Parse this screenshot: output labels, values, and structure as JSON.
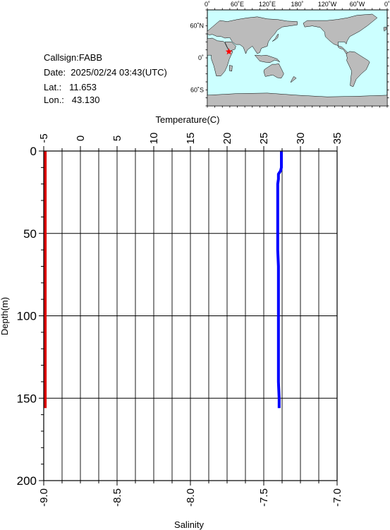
{
  "header": {
    "callsign": "Callsign:FABB",
    "date": "Date:  2025/02/24 03:43(UTC)",
    "lat": "Lat.:   11.653",
    "lon": "Lon.:   43.130"
  },
  "map": {
    "lon_labels": [
      "0˚",
      "60˚E",
      "120˚E",
      "180˚",
      "120˚W",
      "60˚W",
      "0˚"
    ],
    "lat_labels": [
      "60˚N",
      "0˚",
      "60˚S"
    ],
    "station": {
      "lat": 11.653,
      "lon": 43.13
    },
    "ocean_color": "#ccffff",
    "land_color": "#bbbbbb",
    "marker_color": "#ff0000"
  },
  "chart_data": {
    "type": "line",
    "title": "",
    "ylabel": "Depth(m)",
    "ylim": [
      0,
      200
    ],
    "yticks": [
      0,
      50,
      100,
      150,
      200
    ],
    "y_inverted": true,
    "top_axis": {
      "label": "Temperature(C)",
      "range": [
        -5,
        35
      ],
      "ticks": [
        -5,
        0,
        5,
        10,
        15,
        20,
        25,
        30,
        35
      ]
    },
    "bottom_axis": {
      "label": "Salinity",
      "range": [
        -9.0,
        -7.0
      ],
      "ticks": [
        "-9.0",
        "-8.5",
        "-8.0",
        "-7.5",
        "-7.0"
      ],
      "tick_values": [
        -9.0,
        -8.5,
        -8.0,
        -7.5,
        -7.0
      ]
    },
    "grid": true,
    "series": [
      {
        "axis": "temperature",
        "color": "#0000ff",
        "points": [
          [
            27.4,
            0
          ],
          [
            27.4,
            5
          ],
          [
            27.4,
            10
          ],
          [
            27.3,
            12
          ],
          [
            27.0,
            14
          ],
          [
            27.0,
            17
          ],
          [
            26.9,
            20
          ],
          [
            26.9,
            24
          ],
          [
            26.9,
            27
          ],
          [
            26.9,
            30
          ],
          [
            26.9,
            40
          ],
          [
            26.9,
            50
          ],
          [
            26.9,
            60
          ],
          [
            27.0,
            70
          ],
          [
            27.0,
            80
          ],
          [
            27.0,
            90
          ],
          [
            27.0,
            100
          ],
          [
            27.0,
            110
          ],
          [
            27.0,
            120
          ],
          [
            27.0,
            130
          ],
          [
            27.0,
            140
          ],
          [
            27.1,
            150
          ],
          [
            27.1,
            156
          ]
        ]
      },
      {
        "axis": "salinity",
        "color": "#dd0000",
        "points": [
          [
            -8.99,
            0
          ],
          [
            -8.99,
            50
          ],
          [
            -8.99,
            100
          ],
          [
            -8.99,
            150
          ],
          [
            -8.99,
            156
          ]
        ]
      }
    ]
  }
}
